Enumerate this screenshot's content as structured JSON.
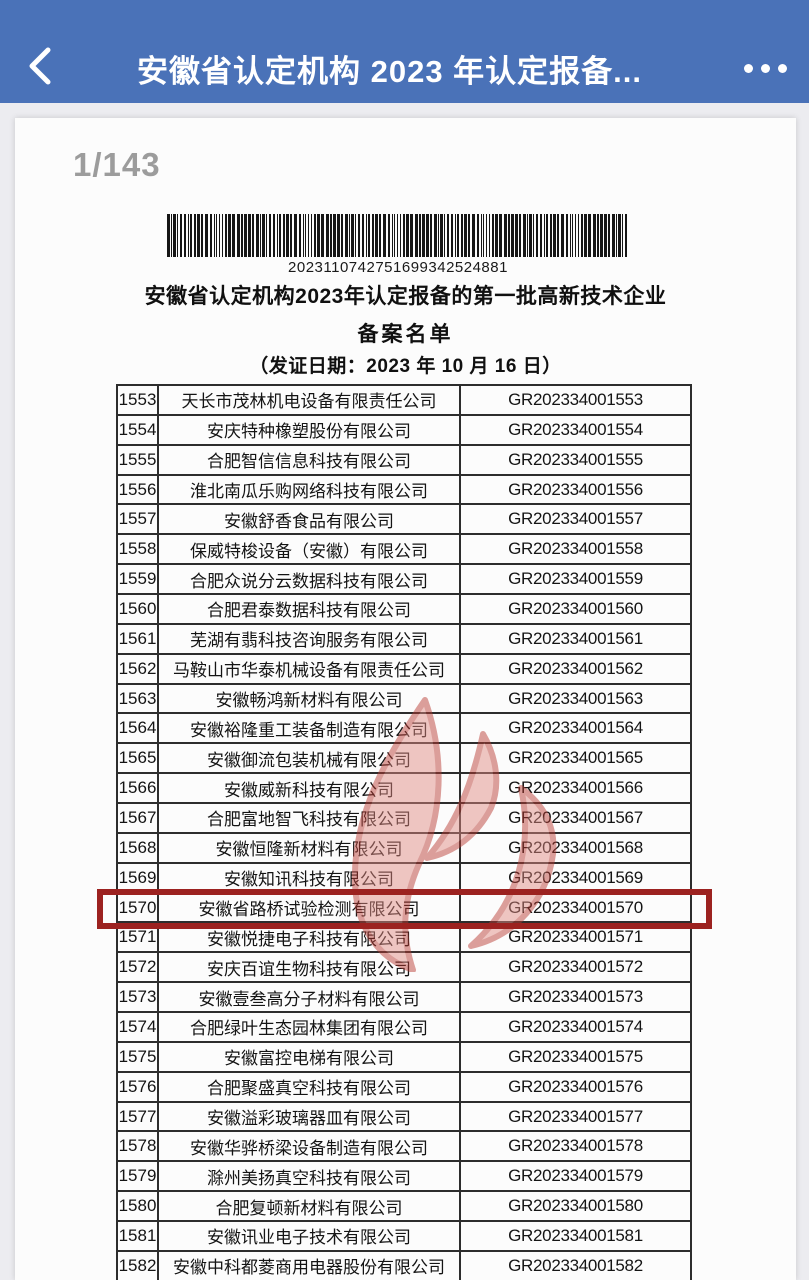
{
  "header": {
    "title": "安徽省认定机构 2023 年认定报备...",
    "icons": {
      "back": "chevron-left-icon",
      "more": "ellipsis-icon"
    }
  },
  "viewer": {
    "page_indicator": "1/143"
  },
  "document": {
    "barcode_number": "2023110742751699342524881",
    "title_line1": "安徽省认定机构2023年认定报备的第一批高新技术企业",
    "title_line2": "备案名单",
    "date_line": "（发证日期：2023 年 10 月 16 日）"
  },
  "table": {
    "highlighted_no": "1570",
    "rows": [
      {
        "no": "1553",
        "company": "天长市茂林机电设备有限责任公司",
        "code": "GR202334001553"
      },
      {
        "no": "1554",
        "company": "安庆特种橡塑股份有限公司",
        "code": "GR202334001554"
      },
      {
        "no": "1555",
        "company": "合肥智信信息科技有限公司",
        "code": "GR202334001555"
      },
      {
        "no": "1556",
        "company": "淮北南瓜乐购网络科技有限公司",
        "code": "GR202334001556"
      },
      {
        "no": "1557",
        "company": "安徽舒香食品有限公司",
        "code": "GR202334001557"
      },
      {
        "no": "1558",
        "company": "保威特梭设备（安徽）有限公司",
        "code": "GR202334001558"
      },
      {
        "no": "1559",
        "company": "合肥众说分云数据科技有限公司",
        "code": "GR202334001559"
      },
      {
        "no": "1560",
        "company": "合肥君泰数据科技有限公司",
        "code": "GR202334001560"
      },
      {
        "no": "1561",
        "company": "芜湖有翡科技咨询服务有限公司",
        "code": "GR202334001561"
      },
      {
        "no": "1562",
        "company": "马鞍山市华泰机械设备有限责任公司",
        "code": "GR202334001562"
      },
      {
        "no": "1563",
        "company": "安徽畅鸿新材料有限公司",
        "code": "GR202334001563"
      },
      {
        "no": "1564",
        "company": "安徽裕隆重工装备制造有限公司",
        "code": "GR202334001564"
      },
      {
        "no": "1565",
        "company": "安徽御流包装机械有限公司",
        "code": "GR202334001565"
      },
      {
        "no": "1566",
        "company": "安徽威新科技有限公司",
        "code": "GR202334001566"
      },
      {
        "no": "1567",
        "company": "合肥富地智飞科技有限公司",
        "code": "GR202334001567"
      },
      {
        "no": "1568",
        "company": "安徽恒隆新材料有限公司",
        "code": "GR202334001568"
      },
      {
        "no": "1569",
        "company": "安徽知讯科技有限公司",
        "code": "GR202334001569"
      },
      {
        "no": "1570",
        "company": "安徽省路桥试验检测有限公司",
        "code": "GR202334001570"
      },
      {
        "no": "1571",
        "company": "安徽悦捷电子科技有限公司",
        "code": "GR202334001571"
      },
      {
        "no": "1572",
        "company": "安庆百谊生物科技有限公司",
        "code": "GR202334001572"
      },
      {
        "no": "1573",
        "company": "安徽壹叁高分子材料有限公司",
        "code": "GR202334001573"
      },
      {
        "no": "1574",
        "company": "合肥绿叶生态园林集团有限公司",
        "code": "GR202334001574"
      },
      {
        "no": "1575",
        "company": "安徽富控电梯有限公司",
        "code": "GR202334001575"
      },
      {
        "no": "1576",
        "company": "合肥聚盛真空科技有限公司",
        "code": "GR202334001576"
      },
      {
        "no": "1577",
        "company": "安徽溢彩玻璃器皿有限公司",
        "code": "GR202334001577"
      },
      {
        "no": "1578",
        "company": "安徽华骅桥梁设备制造有限公司",
        "code": "GR202334001578"
      },
      {
        "no": "1579",
        "company": "滁州美扬真空科技有限公司",
        "code": "GR202334001579"
      },
      {
        "no": "1580",
        "company": "合肥复顿新材料有限公司",
        "code": "GR202334001580"
      },
      {
        "no": "1581",
        "company": "安徽讯业电子技术有限公司",
        "code": "GR202334001581"
      },
      {
        "no": "1582",
        "company": "安徽中科都菱商用电器股份有限公司",
        "code": "GR202334001582"
      }
    ]
  },
  "colors": {
    "header_bg": "#4a72b8",
    "page_bg": "#ececf0",
    "paper_bg": "#fcfcfc",
    "table_border": "#2d2d2d",
    "highlight_border": "#9c2220",
    "watermark_red": "#c2433c",
    "indicator_gray": "#9c9c9c"
  }
}
